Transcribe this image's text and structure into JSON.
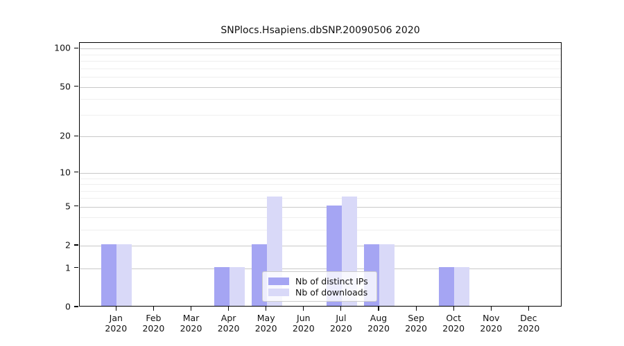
{
  "chart_data": {
    "type": "bar",
    "title": "SNPlocs.Hsapiens.dbSNP.20090506 2020",
    "yscale": "log1p",
    "grid": true,
    "legend_position": "lower center",
    "year": "2020",
    "months": [
      "Jan",
      "Feb",
      "Mar",
      "Apr",
      "May",
      "Jun",
      "Jul",
      "Aug",
      "Sep",
      "Oct",
      "Nov",
      "Dec"
    ],
    "categories": [
      "Jan 2020",
      "Feb 2020",
      "Mar 2020",
      "Apr 2020",
      "May 2020",
      "Jun 2020",
      "Jul 2020",
      "Aug 2020",
      "Sep 2020",
      "Oct 2020",
      "Nov 2020",
      "Dec 2020"
    ],
    "series": [
      {
        "name": "Nb of distinct IPs",
        "color": "#a5a5f3",
        "values": [
          2,
          0,
          0,
          1,
          2,
          0,
          5,
          2,
          0,
          1,
          0,
          0
        ]
      },
      {
        "name": "Nb of downloads",
        "color": "#d9d9f8",
        "values": [
          2,
          0,
          0,
          1,
          6,
          0,
          6,
          2,
          0,
          1,
          0,
          0
        ]
      }
    ],
    "yticks": [
      0,
      1,
      2,
      5,
      10,
      20,
      50,
      100
    ],
    "gridlines": [
      1,
      2,
      3,
      4,
      5,
      6,
      7,
      8,
      9,
      10,
      20,
      30,
      40,
      50,
      60,
      70,
      80,
      90,
      100
    ],
    "major_gridlines": [
      1,
      2,
      5,
      10,
      20,
      50,
      100
    ],
    "ylim": [
      0,
      110
    ],
    "xlabel": "",
    "ylabel": ""
  }
}
